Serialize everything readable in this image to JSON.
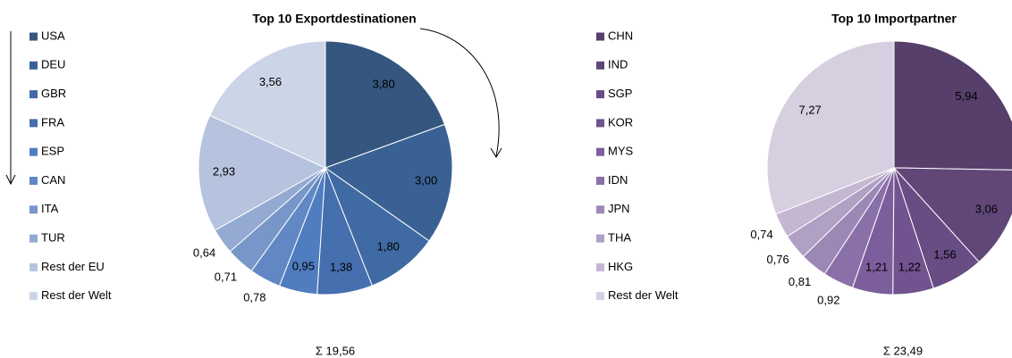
{
  "chart_data": [
    {
      "type": "pie",
      "title": "Top 10 Exportdestinationen",
      "total": "Σ 19,56",
      "categories": [
        "USA",
        "DEU",
        "GBR",
        "FRA",
        "ESP",
        "CAN",
        "ITA",
        "TUR",
        "Rest der EU",
        "Rest der Welt"
      ],
      "values": [
        3.8,
        3.0,
        1.8,
        1.38,
        0.95,
        0.78,
        0.71,
        0.64,
        2.93,
        3.56
      ],
      "value_labels": [
        "3,80",
        "3,00",
        "1,80",
        "1,38",
        "0,95",
        "0,78",
        "0,71",
        "0,64",
        "2,93",
        "3,56"
      ],
      "colors": [
        "#34567f",
        "#3a6194",
        "#3f6aa3",
        "#456fae",
        "#4f7dc0",
        "#6188c4",
        "#7897c8",
        "#95aad2",
        "#b5c3df",
        "#cbd5e7"
      ]
    },
    {
      "type": "pie",
      "title": "Top 10 Importpartner",
      "total": "Σ 23,49",
      "categories": [
        "CHN",
        "IND",
        "SGP",
        "KOR",
        "MYS",
        "IDN",
        "JPN",
        "THA",
        "HKG",
        "Rest der Welt"
      ],
      "values": [
        5.94,
        3.06,
        1.56,
        1.22,
        1.21,
        0.92,
        0.81,
        0.76,
        0.74,
        7.27
      ],
      "value_labels": [
        "5,94",
        "3,06",
        "1,56",
        "1,22",
        "1,21",
        "0,92",
        "0,81",
        "0,76",
        "0,74",
        "7,27"
      ],
      "colors": [
        "#563f6b",
        "#604778",
        "#684c84",
        "#71538f",
        "#7c5e9c",
        "#8a70a8",
        "#9c87b5",
        "#b0a0c4",
        "#c3b7d2",
        "#d6cfe0"
      ]
    }
  ]
}
